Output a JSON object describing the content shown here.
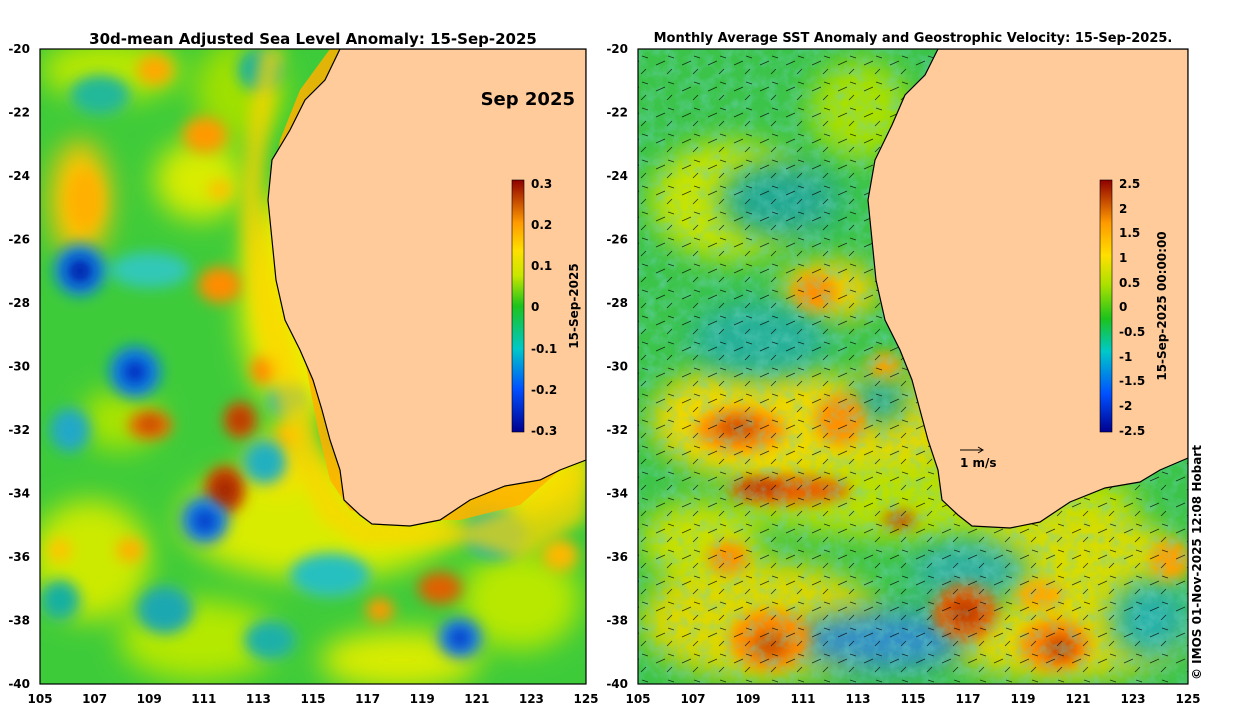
{
  "left_panel": {
    "title": "30d-mean Adjusted Sea Level Anomaly: 15-Sep-2025",
    "month_label": "Sep 2025",
    "colorbar": {
      "label": "15-Sep-2025",
      "ticks": [
        "0.3",
        "0.2",
        "0.1",
        "0",
        "-0.1",
        "-0.2",
        "-0.3"
      ],
      "range": [
        -0.3,
        0.3
      ]
    }
  },
  "right_panel": {
    "title": "Monthly Average SST Anomaly  and Geostrophic Velocity: 15-Sep-2025.",
    "velocity_scale_label": "1 m/s",
    "colorbar": {
      "label": "15-Sep-2025 00:00:00",
      "ticks": [
        "2.5",
        "2",
        "1.5",
        "1",
        "0.5",
        "0",
        "-0.5",
        "-1",
        "-1.5",
        "-2",
        "-2.5"
      ],
      "range": [
        -2.5,
        2.5
      ]
    }
  },
  "axes": {
    "x_ticks": [
      "105",
      "107",
      "109",
      "111",
      "113",
      "115",
      "117",
      "119",
      "121",
      "123",
      "125"
    ],
    "y_ticks": [
      "-20",
      "-22",
      "-24",
      "-26",
      "-28",
      "-30",
      "-32",
      "-34",
      "-36",
      "-38",
      "-40"
    ],
    "lon_range": [
      105,
      125
    ],
    "lat_range": [
      -40,
      -20
    ]
  },
  "copyright": "© IMOS 01-Nov-2025 12:08 Hobart",
  "colors": {
    "land": "#ffcb9a",
    "coast_line": "#000000"
  }
}
